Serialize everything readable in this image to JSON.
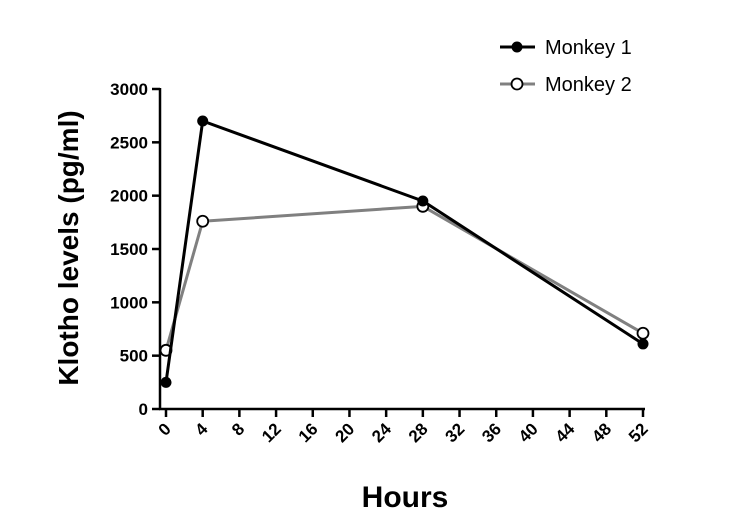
{
  "chart_data": {
    "type": "line",
    "xlabel": "Hours",
    "ylabel": "Klotho levels (pg/ml)",
    "xlim": [
      0,
      52
    ],
    "ylim": [
      0,
      3000
    ],
    "xticks": [
      "0",
      "4",
      "8",
      "12",
      "16",
      "20",
      "24",
      "28",
      "32",
      "36",
      "40",
      "44",
      "48",
      "52"
    ],
    "yticks": [
      "0",
      "500",
      "1000",
      "1500",
      "2000",
      "2500",
      "3000"
    ],
    "legend_position": "top-right",
    "grid": false,
    "series": [
      {
        "name": "Monkey 1",
        "color": "#000000",
        "marker": "filled-circle",
        "x": [
          0,
          4,
          28,
          52
        ],
        "y": [
          250,
          2700,
          1950,
          610
        ]
      },
      {
        "name": "Monkey 2",
        "color": "#808080",
        "marker": "open-circle",
        "x": [
          0,
          4,
          28,
          52
        ],
        "y": [
          550,
          1760,
          1900,
          710
        ]
      }
    ]
  }
}
